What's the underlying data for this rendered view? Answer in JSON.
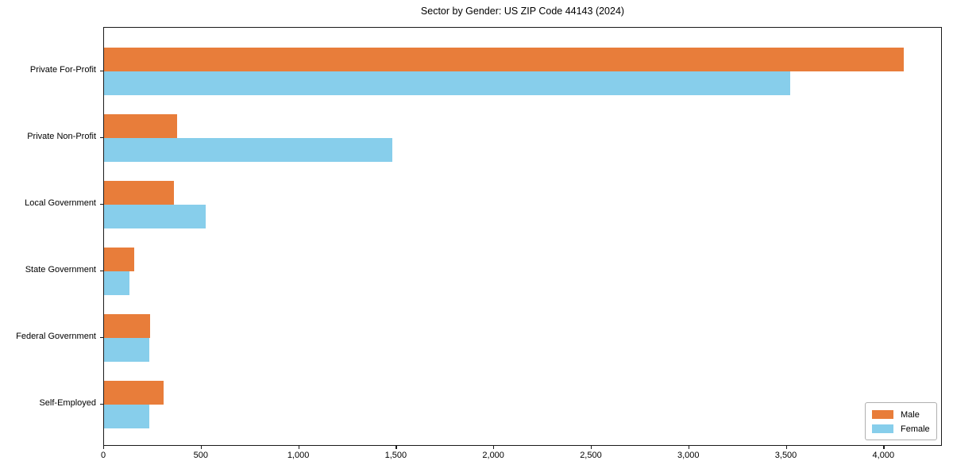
{
  "chart_data": {
    "type": "bar",
    "orientation": "horizontal",
    "title": "Sector by Gender: US ZIP Code 44143 (2024)",
    "categories": [
      "Private For-Profit",
      "Private Non-Profit",
      "Local Government",
      "State Government",
      "Federal Government",
      "Self-Employed"
    ],
    "series": [
      {
        "name": "Male",
        "color": "#e87d3a",
        "values": [
          4100,
          375,
          360,
          155,
          238,
          307
        ]
      },
      {
        "name": "Female",
        "color": "#87ceeb",
        "values": [
          3520,
          1480,
          520,
          132,
          231,
          232
        ]
      }
    ],
    "xlabel": "",
    "ylabel": "",
    "xlim": [
      0,
      4300
    ],
    "xticks": [
      0,
      500,
      1000,
      1500,
      2000,
      2500,
      3000,
      3500,
      4000
    ],
    "xtick_labels": [
      "0",
      "500",
      "1,000",
      "1,500",
      "2,000",
      "2,500",
      "3,000",
      "3,500",
      "4,000"
    ],
    "legend": {
      "position": "lower right",
      "entries": [
        "Male",
        "Female"
      ]
    },
    "grid": false,
    "spine_color": "#1a1a1a",
    "background_color": "#ffffff"
  }
}
